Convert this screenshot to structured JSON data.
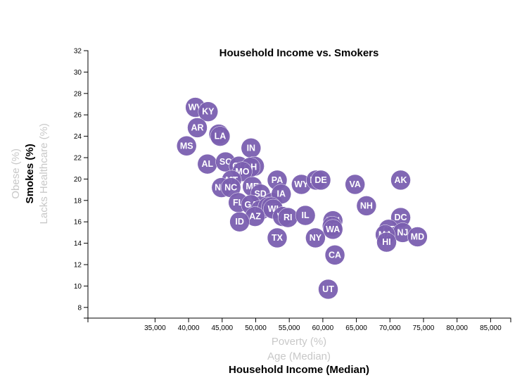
{
  "chart_data": {
    "type": "scatter",
    "title": "Household Income vs. Smokers",
    "xlim": [
      25000,
      88000
    ],
    "ylim": [
      7,
      32
    ],
    "x_ticks": [
      35000,
      40000,
      45000,
      50000,
      55000,
      60000,
      65000,
      70000,
      75000,
      80000,
      85000
    ],
    "x_tick_labels": [
      "35,000",
      "40,000",
      "45,000",
      "50,000",
      "55,000",
      "60,000",
      "65,000",
      "70,000",
      "75,000",
      "80,000",
      "85,000"
    ],
    "y_ticks": [
      8,
      10,
      12,
      14,
      16,
      18,
      20,
      22,
      24,
      26,
      28,
      30,
      32
    ],
    "x_axis_labels": [
      {
        "text": "Poverty (%)",
        "active": false
      },
      {
        "text": "Age (Median)",
        "active": false
      },
      {
        "text": "Household Income (Median)",
        "active": true
      }
    ],
    "y_axis_labels": [
      {
        "text": "Obese (%)",
        "active": false
      },
      {
        "text": "Smokes (%)",
        "active": true
      },
      {
        "text": "Lacks Healthcare (%)",
        "active": false
      }
    ],
    "marker_color": "#7b5fb0",
    "points": [
      {
        "label": "WV",
        "x": 41000,
        "y": 26.7
      },
      {
        "label": "KY",
        "x": 42900,
        "y": 26.3
      },
      {
        "label": "AR",
        "x": 41300,
        "y": 24.8
      },
      {
        "label": "TN",
        "x": 44500,
        "y": 24.2
      },
      {
        "label": "LA",
        "x": 44700,
        "y": 24.0
      },
      {
        "label": "MS",
        "x": 39700,
        "y": 23.1
      },
      {
        "label": "IN",
        "x": 49300,
        "y": 22.9
      },
      {
        "label": "AL",
        "x": 42800,
        "y": 21.4
      },
      {
        "label": "SC",
        "x": 45500,
        "y": 21.6
      },
      {
        "label": "OK",
        "x": 47500,
        "y": 21.2
      },
      {
        "label": "MI",
        "x": 49800,
        "y": 21.2
      },
      {
        "label": "OH",
        "x": 49200,
        "y": 21.1
      },
      {
        "label": "MO",
        "x": 48000,
        "y": 20.7
      },
      {
        "label": "MT",
        "x": 46400,
        "y": 19.9
      },
      {
        "label": "NM",
        "x": 44900,
        "y": 19.2
      },
      {
        "label": "NC",
        "x": 46300,
        "y": 19.2
      },
      {
        "label": "ME",
        "x": 49500,
        "y": 19.3
      },
      {
        "label": "SD",
        "x": 50700,
        "y": 18.6
      },
      {
        "label": "PA",
        "x": 53200,
        "y": 19.9
      },
      {
        "label": "WY",
        "x": 56800,
        "y": 19.5
      },
      {
        "label": "ND",
        "x": 59000,
        "y": 19.9
      },
      {
        "label": "DE",
        "x": 59700,
        "y": 19.9
      },
      {
        "label": "KS",
        "x": 52500,
        "y": 17.8
      },
      {
        "label": "IA",
        "x": 53800,
        "y": 18.6
      },
      {
        "label": "FL",
        "x": 47400,
        "y": 17.8
      },
      {
        "label": "GA",
        "x": 49300,
        "y": 17.6
      },
      {
        "label": "OR",
        "x": 50700,
        "y": 17.1
      },
      {
        "label": "NV",
        "x": 51800,
        "y": 17.4
      },
      {
        "label": "NE",
        "x": 52300,
        "y": 17.4
      },
      {
        "label": "WI",
        "x": 52600,
        "y": 17.2
      },
      {
        "label": "AZ",
        "x": 49900,
        "y": 16.5
      },
      {
        "label": "ID",
        "x": 47600,
        "y": 16.0
      },
      {
        "label": "VT",
        "x": 54000,
        "y": 16.5
      },
      {
        "label": "RI",
        "x": 54800,
        "y": 16.4
      },
      {
        "label": "IL",
        "x": 57400,
        "y": 16.6
      },
      {
        "label": "TX",
        "x": 53200,
        "y": 14.5
      },
      {
        "label": "NY",
        "x": 58900,
        "y": 14.5
      },
      {
        "label": "MN",
        "x": 61500,
        "y": 16.1
      },
      {
        "label": "CO",
        "x": 61400,
        "y": 15.6
      },
      {
        "label": "WA",
        "x": 61500,
        "y": 15.3
      },
      {
        "label": "CA",
        "x": 61800,
        "y": 12.9
      },
      {
        "label": "UT",
        "x": 60800,
        "y": 9.7
      },
      {
        "label": "VA",
        "x": 64800,
        "y": 19.5
      },
      {
        "label": "NH",
        "x": 66500,
        "y": 17.5
      },
      {
        "label": "AK",
        "x": 71600,
        "y": 19.9
      },
      {
        "label": "DC",
        "x": 71600,
        "y": 16.4
      },
      {
        "label": "CT",
        "x": 69800,
        "y": 15.3
      },
      {
        "label": "NJ",
        "x": 71900,
        "y": 15.0
      },
      {
        "label": "MA",
        "x": 69300,
        "y": 14.8
      },
      {
        "label": "HI",
        "x": 69500,
        "y": 14.1
      },
      {
        "label": "MD",
        "x": 74100,
        "y": 14.6
      }
    ]
  }
}
